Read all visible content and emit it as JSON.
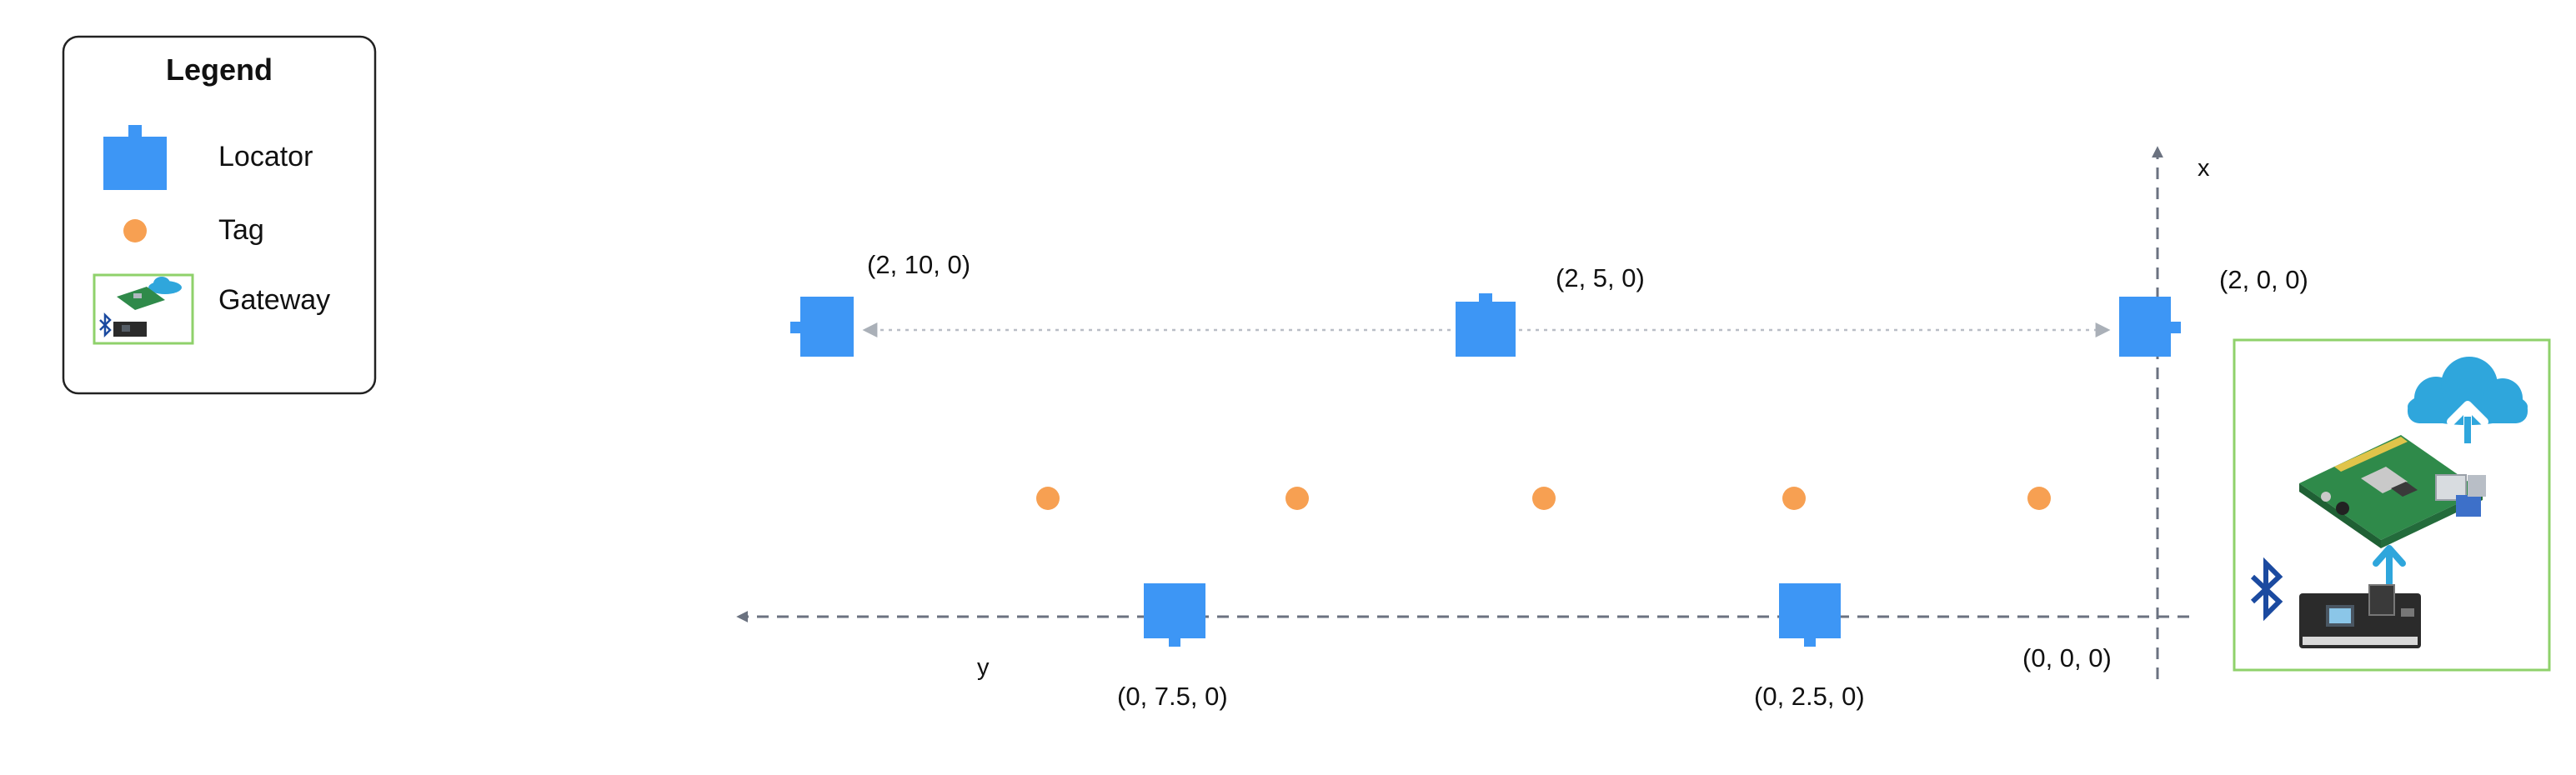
{
  "legend": {
    "title": "Legend",
    "items": [
      {
        "label": "Locator",
        "icon": "locator-icon"
      },
      {
        "label": "Tag",
        "icon": "tag-icon"
      },
      {
        "label": "Gateway",
        "icon": "gateway-icon"
      }
    ]
  },
  "axes": {
    "x_label": "x",
    "y_label": "y"
  },
  "locators": [
    {
      "label": "(2, 10, 0)",
      "connector": "left"
    },
    {
      "label": "(2, 5, 0)",
      "connector": "top"
    },
    {
      "label": "(2, 0, 0)",
      "connector": "right"
    },
    {
      "label": "(0, 7.5, 0)",
      "connector": "bottom"
    },
    {
      "label": "(0, 2.5, 0)",
      "connector": "bottom"
    }
  ],
  "origin": {
    "label": "(0, 0, 0)"
  },
  "tags_count_shown": 5,
  "colors": {
    "locator": "#3d96f5",
    "tag": "#f7a052",
    "gateway_border": "#8fd16b",
    "axis": "#6b7280",
    "dotted_line": "#b9bec6",
    "bluetooth": "#1b4aa0",
    "cloud": "#2fa6dc"
  }
}
